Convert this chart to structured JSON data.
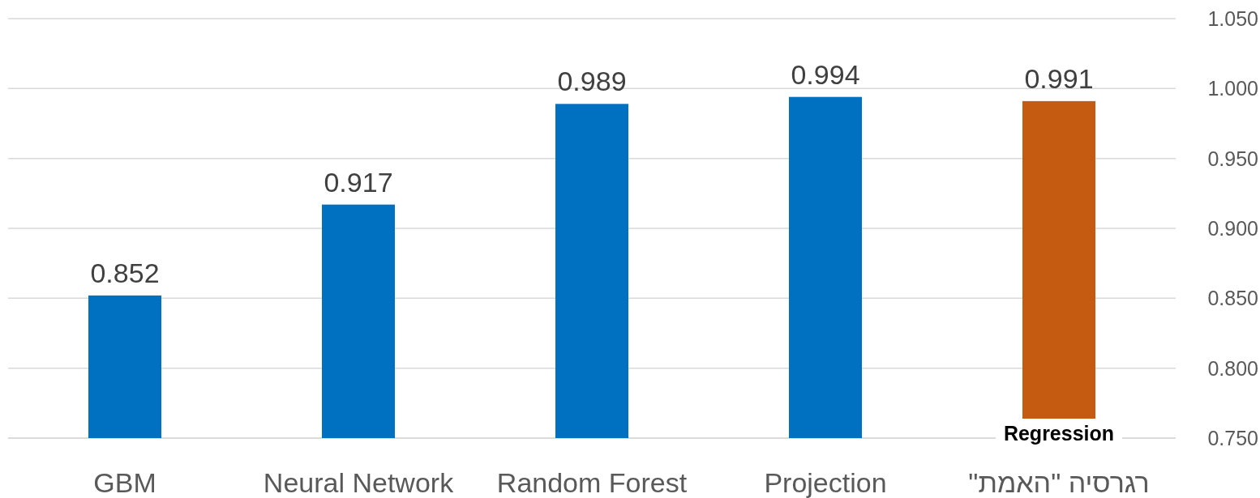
{
  "chart_data": {
    "type": "bar",
    "categories": [
      "GBM",
      "Neural Network",
      "Random Forest",
      "Projection",
      "רגרסיה \"האמת\""
    ],
    "values": [
      0.852,
      0.917,
      0.989,
      0.994,
      0.991
    ],
    "colors": [
      "#0070c0",
      "#0070c0",
      "#0070c0",
      "#0070c0",
      "#c55a11"
    ],
    "ylim": [
      0.75,
      1.05
    ],
    "yticks": [
      {
        "value": 0.75,
        "label": "0.750"
      },
      {
        "value": 0.8,
        "label": "0.800"
      },
      {
        "value": 0.85,
        "label": "0.850"
      },
      {
        "value": 0.9,
        "label": "0.900"
      },
      {
        "value": 0.95,
        "label": "0.950"
      },
      {
        "value": 1.0,
        "label": "1.000"
      },
      {
        "value": 1.05,
        "label": "1.050"
      }
    ],
    "grid": "y",
    "data_labels": true,
    "annotations": [
      "Regression"
    ]
  }
}
